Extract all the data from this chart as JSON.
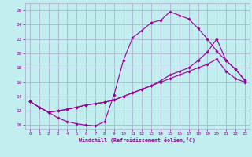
{
  "xlabel": "Windchill (Refroidissement éolien,°C)",
  "bg_color": "#c2eef0",
  "grid_color": "#aaaacc",
  "line_color": "#990099",
  "xlim": [
    -0.5,
    23.5
  ],
  "ylim": [
    9.5,
    27.0
  ],
  "xticks": [
    0,
    1,
    2,
    3,
    4,
    5,
    6,
    7,
    8,
    9,
    10,
    11,
    12,
    13,
    14,
    15,
    16,
    17,
    18,
    19,
    20,
    21,
    22,
    23
  ],
  "yticks": [
    10,
    12,
    14,
    16,
    18,
    20,
    22,
    24,
    26
  ],
  "series1_x": [
    0,
    1,
    2,
    3,
    4,
    5,
    6,
    7,
    8,
    9,
    10,
    11,
    12,
    13,
    14,
    15,
    16,
    17,
    18,
    19,
    20,
    21,
    22,
    23
  ],
  "series1_y": [
    13.3,
    12.5,
    11.8,
    11.0,
    10.5,
    10.2,
    10.0,
    9.9,
    10.5,
    14.2,
    19.0,
    22.2,
    23.2,
    24.3,
    24.6,
    25.8,
    25.3,
    24.8,
    23.5,
    22.0,
    20.3,
    19.0,
    17.8,
    16.3
  ],
  "series2_x": [
    0,
    1,
    2,
    3,
    4,
    5,
    6,
    7,
    8,
    9,
    10,
    11,
    12,
    13,
    14,
    15,
    16,
    17,
    18,
    19,
    20,
    21,
    22,
    23
  ],
  "series2_y": [
    13.3,
    12.5,
    11.8,
    12.0,
    12.2,
    12.5,
    12.8,
    13.0,
    13.2,
    13.5,
    14.0,
    14.5,
    15.0,
    15.5,
    16.2,
    17.0,
    17.5,
    18.0,
    19.0,
    20.2,
    22.0,
    19.0,
    17.8,
    16.2
  ],
  "series3_x": [
    0,
    1,
    2,
    3,
    4,
    5,
    6,
    7,
    8,
    9,
    10,
    11,
    12,
    13,
    14,
    15,
    16,
    17,
    18,
    19,
    20,
    21,
    22,
    23
  ],
  "series3_y": [
    13.3,
    12.5,
    11.8,
    12.0,
    12.2,
    12.5,
    12.8,
    13.0,
    13.2,
    13.5,
    14.0,
    14.5,
    15.0,
    15.5,
    16.0,
    16.5,
    17.0,
    17.5,
    18.0,
    18.5,
    19.2,
    17.5,
    16.5,
    16.0
  ]
}
